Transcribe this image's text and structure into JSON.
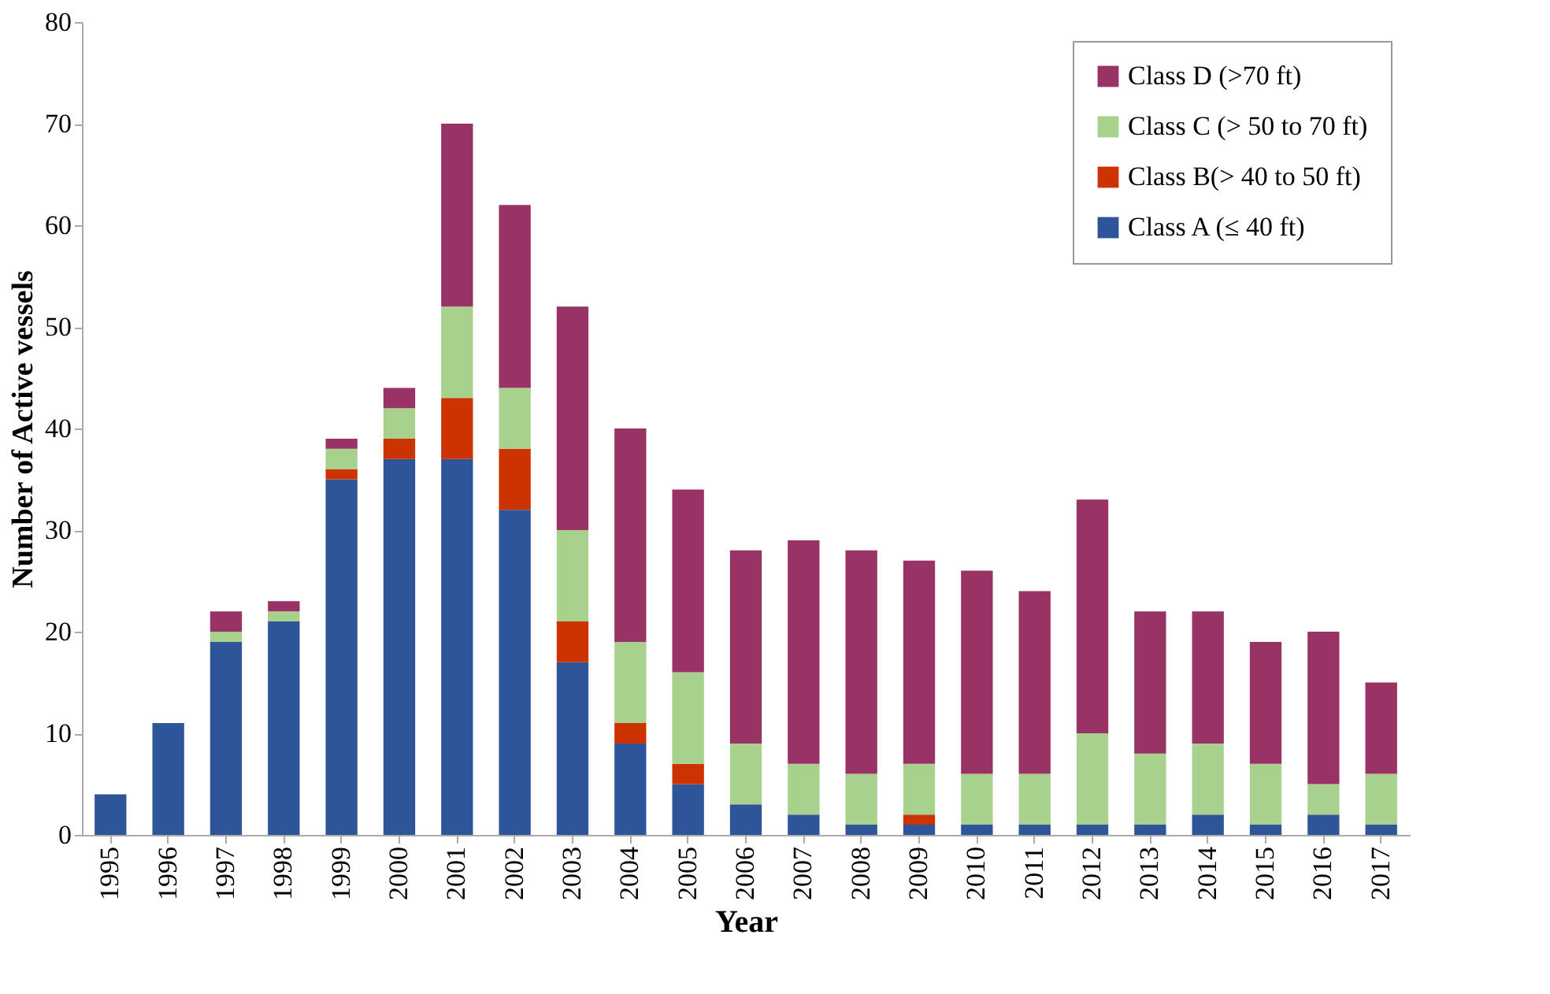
{
  "chart_data": {
    "type": "bar",
    "stacked": true,
    "xlabel": "Year",
    "ylabel": "Number of Active vessels",
    "categories": [
      "1995",
      "1996",
      "1997",
      "1998",
      "1999",
      "2000",
      "2001",
      "2002",
      "2003",
      "2004",
      "2005",
      "2006",
      "2007",
      "2008",
      "2009",
      "2010",
      "2011",
      "2012",
      "2013",
      "2014",
      "2015",
      "2016",
      "2017"
    ],
    "series": [
      {
        "name": "Class A (≤ 40 ft)",
        "color": "#2e5597",
        "values": [
          4,
          11,
          19,
          21,
          35,
          37,
          37,
          32,
          17,
          9,
          5,
          3,
          2,
          1,
          1,
          1,
          1,
          1,
          1,
          2,
          1,
          2,
          1
        ]
      },
      {
        "name": "Class B(> 40 to 50 ft)",
        "color": "#cc3300",
        "values": [
          0,
          0,
          0,
          0,
          1,
          2,
          6,
          6,
          4,
          2,
          2,
          0,
          0,
          0,
          1,
          0,
          0,
          0,
          0,
          0,
          0,
          0,
          0
        ]
      },
      {
        "name": "Class C (> 50 to 70 ft)",
        "color": "#a9d18e",
        "values": [
          0,
          0,
          1,
          1,
          2,
          3,
          9,
          6,
          9,
          8,
          9,
          6,
          5,
          5,
          5,
          5,
          5,
          9,
          7,
          7,
          6,
          3,
          5
        ]
      },
      {
        "name": "Class D (>70 ft)",
        "color": "#993366",
        "values": [
          0,
          0,
          2,
          1,
          1,
          2,
          18,
          18,
          22,
          21,
          18,
          19,
          22,
          22,
          20,
          20,
          18,
          23,
          14,
          13,
          12,
          15,
          9
        ]
      }
    ],
    "ylim": [
      0,
      80
    ],
    "yticks": [
      0,
      10,
      20,
      30,
      40,
      50,
      60,
      70,
      80
    ],
    "grid": false,
    "legend": "top right"
  }
}
